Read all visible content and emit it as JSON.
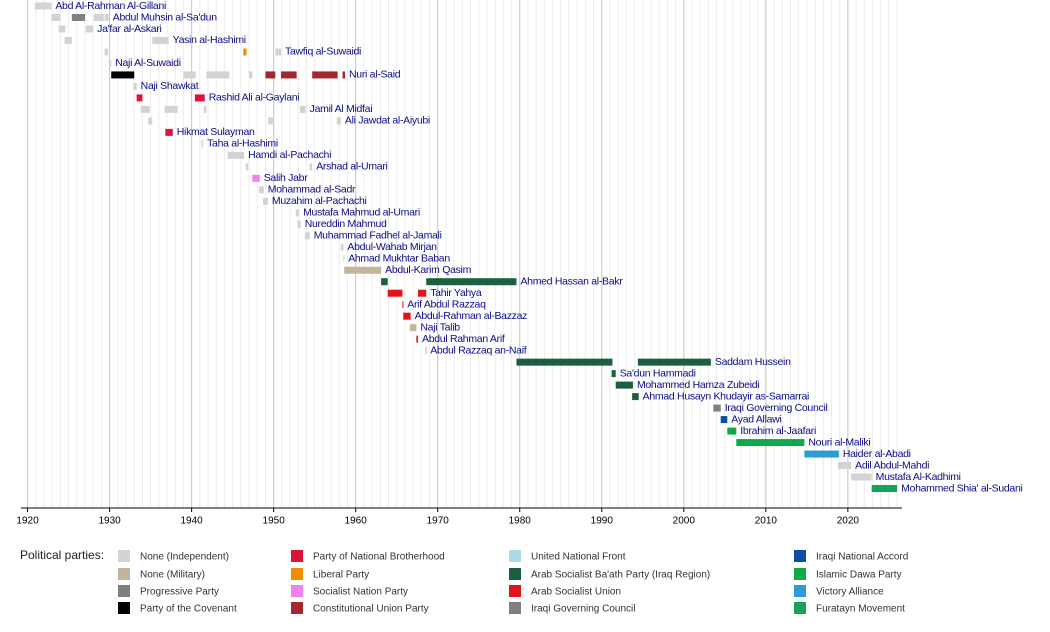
{
  "chart_data": {
    "type": "timeline",
    "xlim": [
      1919.2,
      2026.6
    ],
    "xticks": [
      1920,
      1930,
      1940,
      1950,
      1960,
      1970,
      1980,
      1990,
      2000,
      2010,
      2020
    ],
    "minor_xticks": [
      1920,
      1921,
      1922,
      1923,
      1924,
      1925,
      1926,
      1927,
      1928,
      1929,
      1930,
      1931,
      1932,
      1933,
      1934,
      1935,
      1936,
      1937,
      1938,
      1939,
      1940,
      1941,
      1942,
      1943,
      1944,
      1945,
      1946,
      1947,
      1948,
      1949,
      1950,
      1951,
      1952,
      1953,
      1954,
      1955,
      1956,
      1957,
      1958,
      1959,
      1960,
      1961,
      1962,
      1963,
      1964,
      1965,
      1966,
      1967,
      1968,
      1969,
      1970,
      1971,
      1972,
      1973,
      1974,
      1975,
      1976,
      1977,
      1978,
      1979,
      1980,
      1981,
      1982,
      1983,
      1984,
      1985,
      1986,
      1987,
      1988,
      1989,
      1990,
      1991,
      1992,
      1993,
      1994,
      1995,
      1996,
      1997,
      1998,
      1999,
      2000,
      2001,
      2002,
      2003,
      2004,
      2005,
      2006,
      2007,
      2008,
      2009,
      2010,
      2011,
      2012,
      2013,
      2014,
      2015,
      2016,
      2017,
      2018,
      2019,
      2020,
      2021,
      2022,
      2023,
      2024,
      2025,
      2026
    ],
    "grid": true,
    "legend_title": "Political parties:",
    "parties": [
      {
        "name": "None (Independent)",
        "color": "#d3d3d3"
      },
      {
        "name": "None (Military)",
        "color": "#c2b59b"
      },
      {
        "name": "Progressive Party",
        "color": "#808080"
      },
      {
        "name": "Party of the Covenant",
        "color": "#000000"
      },
      {
        "name": "Party of National Brotherhood",
        "color": "#dc143c"
      },
      {
        "name": "Liberal Party",
        "color": "#f28c00"
      },
      {
        "name": "Socialist Nation Party",
        "color": "#ee82ee"
      },
      {
        "name": "Constitutional Union Party",
        "color": "#a3282e"
      },
      {
        "name": "United National Front",
        "color": "#add8e6"
      },
      {
        "name": "Arab Socialist Ba'ath Party (Iraq Region)",
        "color": "#1b5e40"
      },
      {
        "name": "Arab Socialist Union",
        "color": "#e0141c"
      },
      {
        "name": "Iraqi Governing Council",
        "color": "#808080"
      },
      {
        "name": "Iraqi National Accord",
        "color": "#0b4ea2"
      },
      {
        "name": "Islamic Dawa Party",
        "color": "#10a84a"
      },
      {
        "name": "Victory Alliance",
        "color": "#2e9bd6"
      },
      {
        "name": "Furatayn Movement",
        "color": "#17a05d"
      }
    ],
    "rows": [
      {
        "name": "Abd Al-Rahman Al-Gillani",
        "terms": [
          {
            "start": 1920.9,
            "end": 1922.9,
            "party": 0
          }
        ]
      },
      {
        "name": "Abdul Muhsin al-Sa'dun",
        "terms": [
          {
            "start": 1922.9,
            "end": 1924.0,
            "party": 0
          },
          {
            "start": 1925.4,
            "end": 1927.0,
            "party": 2
          },
          {
            "start": 1928.1,
            "end": 1929.3,
            "party": 0
          },
          {
            "start": 1929.4,
            "end": 1929.9,
            "party": 0
          }
        ]
      },
      {
        "name": "Ja'far al-Askari",
        "terms": [
          {
            "start": 1923.8,
            "end": 1924.6,
            "party": 0
          },
          {
            "start": 1927.1,
            "end": 1928.0,
            "party": 0
          }
        ]
      },
      {
        "name": "Yasin al-Hashimi",
        "terms": [
          {
            "start": 1924.5,
            "end": 1925.4,
            "party": 0
          },
          {
            "start": 1935.2,
            "end": 1937.2,
            "party": 0
          }
        ]
      },
      {
        "name": "Tawfiq al-Suwaidi",
        "terms": [
          {
            "start": 1929.4,
            "end": 1929.8,
            "party": 0
          },
          {
            "start": 1946.3,
            "end": 1946.7,
            "party": 5
          },
          {
            "start": 1950.2,
            "end": 1950.9,
            "party": 0
          }
        ]
      },
      {
        "name": "Naji Al-Suwaidi",
        "terms": [
          {
            "start": 1929.9,
            "end": 1930.2,
            "party": 0
          }
        ]
      },
      {
        "name": "Nuri al-Said",
        "terms": [
          {
            "start": 1930.2,
            "end": 1933.0,
            "party": 3
          },
          {
            "start": 1939.0,
            "end": 1940.5,
            "party": 0
          },
          {
            "start": 1941.8,
            "end": 1944.6,
            "party": 0
          },
          {
            "start": 1947.0,
            "end": 1947.4,
            "party": 0
          },
          {
            "start": 1949.0,
            "end": 1950.2,
            "party": 7
          },
          {
            "start": 1950.9,
            "end": 1952.8,
            "party": 7
          },
          {
            "start": 1954.7,
            "end": 1957.8,
            "party": 7
          },
          {
            "start": 1958.4,
            "end": 1958.7,
            "party": 7
          }
        ]
      },
      {
        "name": "Naji Shawkat",
        "terms": [
          {
            "start": 1932.9,
            "end": 1933.3,
            "party": 0
          }
        ]
      },
      {
        "name": "Rashid Ali al-Gaylani",
        "terms": [
          {
            "start": 1933.3,
            "end": 1934.0,
            "party": 4
          },
          {
            "start": 1940.4,
            "end": 1941.6,
            "party": 4
          }
        ]
      },
      {
        "name": "Jamil Al Midfai",
        "terms": [
          {
            "start": 1933.8,
            "end": 1934.9,
            "party": 0
          },
          {
            "start": 1936.7,
            "end": 1938.3,
            "party": 0
          },
          {
            "start": 1941.5,
            "end": 1941.8,
            "party": 0
          },
          {
            "start": 1953.2,
            "end": 1953.9,
            "party": 0
          }
        ]
      },
      {
        "name": "Ali Jawdat al-Aiyubi",
        "terms": [
          {
            "start": 1934.7,
            "end": 1935.2,
            "party": 0
          },
          {
            "start": 1949.3,
            "end": 1949.9,
            "party": 0
          },
          {
            "start": 1957.7,
            "end": 1958.2,
            "party": 0
          }
        ]
      },
      {
        "name": "Hikmat Sulayman",
        "terms": [
          {
            "start": 1936.8,
            "end": 1937.7,
            "party": 4
          }
        ]
      },
      {
        "name": "Taha al-Hashimi",
        "terms": [
          {
            "start": 1941.2,
            "end": 1941.4,
            "party": 0
          }
        ]
      },
      {
        "name": "Hamdi al-Pachachi",
        "terms": [
          {
            "start": 1944.4,
            "end": 1946.4,
            "party": 0
          }
        ]
      },
      {
        "name": "Arshad al-Umari",
        "terms": [
          {
            "start": 1946.6,
            "end": 1946.9,
            "party": 0
          },
          {
            "start": 1954.4,
            "end": 1954.7,
            "party": 0
          }
        ]
      },
      {
        "name": "Salih Jabr",
        "terms": [
          {
            "start": 1947.4,
            "end": 1948.3,
            "party": 6
          }
        ]
      },
      {
        "name": "Mohammad al-Sadr",
        "terms": [
          {
            "start": 1948.2,
            "end": 1948.8,
            "party": 0
          }
        ]
      },
      {
        "name": "Muzahim al-Pachachi",
        "terms": [
          {
            "start": 1948.7,
            "end": 1949.3,
            "party": 0
          }
        ]
      },
      {
        "name": "Mustafa Mahmud al-Umari",
        "terms": [
          {
            "start": 1952.7,
            "end": 1953.1,
            "party": 0
          }
        ]
      },
      {
        "name": "Nureddin Mahmud",
        "terms": [
          {
            "start": 1952.9,
            "end": 1953.3,
            "party": 0
          }
        ]
      },
      {
        "name": "Muhammad Fadhel al-Jamali",
        "terms": [
          {
            "start": 1953.8,
            "end": 1954.4,
            "party": 0
          }
        ]
      },
      {
        "name": "Abdul-Wahab Mirjan",
        "terms": [
          {
            "start": 1958.2,
            "end": 1958.5,
            "party": 0
          }
        ]
      },
      {
        "name": "Ahmad Mukhtar Baban",
        "terms": [
          {
            "start": 1958.5,
            "end": 1958.6,
            "party": 0
          }
        ]
      },
      {
        "name": "Abdul-Karim Qasim",
        "terms": [
          {
            "start": 1958.6,
            "end": 1963.1,
            "party": 1
          }
        ]
      },
      {
        "name": "Ahmed Hassan al-Bakr",
        "terms": [
          {
            "start": 1963.1,
            "end": 1963.9,
            "party": 9
          },
          {
            "start": 1968.6,
            "end": 1979.6,
            "party": 9
          }
        ]
      },
      {
        "name": "Tahir Yahya",
        "terms": [
          {
            "start": 1963.9,
            "end": 1965.7,
            "party": 10
          },
          {
            "start": 1967.6,
            "end": 1968.6,
            "party": 10
          }
        ]
      },
      {
        "name": "Arif Abdul Razzaq",
        "terms": [
          {
            "start": 1965.7,
            "end": 1965.8,
            "party": 10
          }
        ]
      },
      {
        "name": "Abdul-Rahman al-Bazzaz",
        "terms": [
          {
            "start": 1965.8,
            "end": 1966.7,
            "party": 10
          }
        ]
      },
      {
        "name": "Naji Talib",
        "terms": [
          {
            "start": 1966.6,
            "end": 1967.4,
            "party": 1
          }
        ]
      },
      {
        "name": "Abdul Rahman Arif",
        "terms": [
          {
            "start": 1967.4,
            "end": 1967.6,
            "party": 10
          }
        ]
      },
      {
        "name": "Abdul Razzaq an-Naif",
        "terms": [
          {
            "start": 1968.5,
            "end": 1968.6,
            "party": 1
          }
        ]
      },
      {
        "name": "Saddam Hussein",
        "terms": [
          {
            "start": 1979.6,
            "end": 1991.3,
            "party": 9
          },
          {
            "start": 1994.4,
            "end": 2003.3,
            "party": 9
          }
        ]
      },
      {
        "name": "Sa'dun Hammadi",
        "terms": [
          {
            "start": 1991.2,
            "end": 1991.7,
            "party": 9
          }
        ]
      },
      {
        "name": "Mohammed Hamza Zubeidi",
        "terms": [
          {
            "start": 1991.7,
            "end": 1993.8,
            "party": 9
          }
        ]
      },
      {
        "name": "Ahmad Husayn Khudayir as-Samarrai",
        "terms": [
          {
            "start": 1993.7,
            "end": 1994.5,
            "party": 9
          }
        ]
      },
      {
        "name": "Iraqi Governing Council",
        "terms": [
          {
            "start": 2003.6,
            "end": 2004.5,
            "party": 11
          }
        ]
      },
      {
        "name": "Ayad Allawi",
        "terms": [
          {
            "start": 2004.5,
            "end": 2005.3,
            "party": 12
          }
        ]
      },
      {
        "name": "Ibrahim al-Jaafari",
        "terms": [
          {
            "start": 2005.3,
            "end": 2006.4,
            "party": 13
          }
        ]
      },
      {
        "name": "Nouri al-Maliki",
        "terms": [
          {
            "start": 2006.4,
            "end": 2014.7,
            "party": 13
          }
        ]
      },
      {
        "name": "Haider al-Abadi",
        "terms": [
          {
            "start": 2014.7,
            "end": 2018.9,
            "party": 14
          }
        ]
      },
      {
        "name": "Adil Abdul-Mahdi",
        "terms": [
          {
            "start": 2018.8,
            "end": 2020.4,
            "party": 0
          }
        ]
      },
      {
        "name": "Mustafa Al-Kadhimi",
        "terms": [
          {
            "start": 2020.4,
            "end": 2022.9,
            "party": 0
          }
        ]
      },
      {
        "name": "Mohammed Shia' al-Sudani",
        "terms": [
          {
            "start": 2022.9,
            "end": 2026.0,
            "party": 15
          }
        ]
      }
    ]
  }
}
